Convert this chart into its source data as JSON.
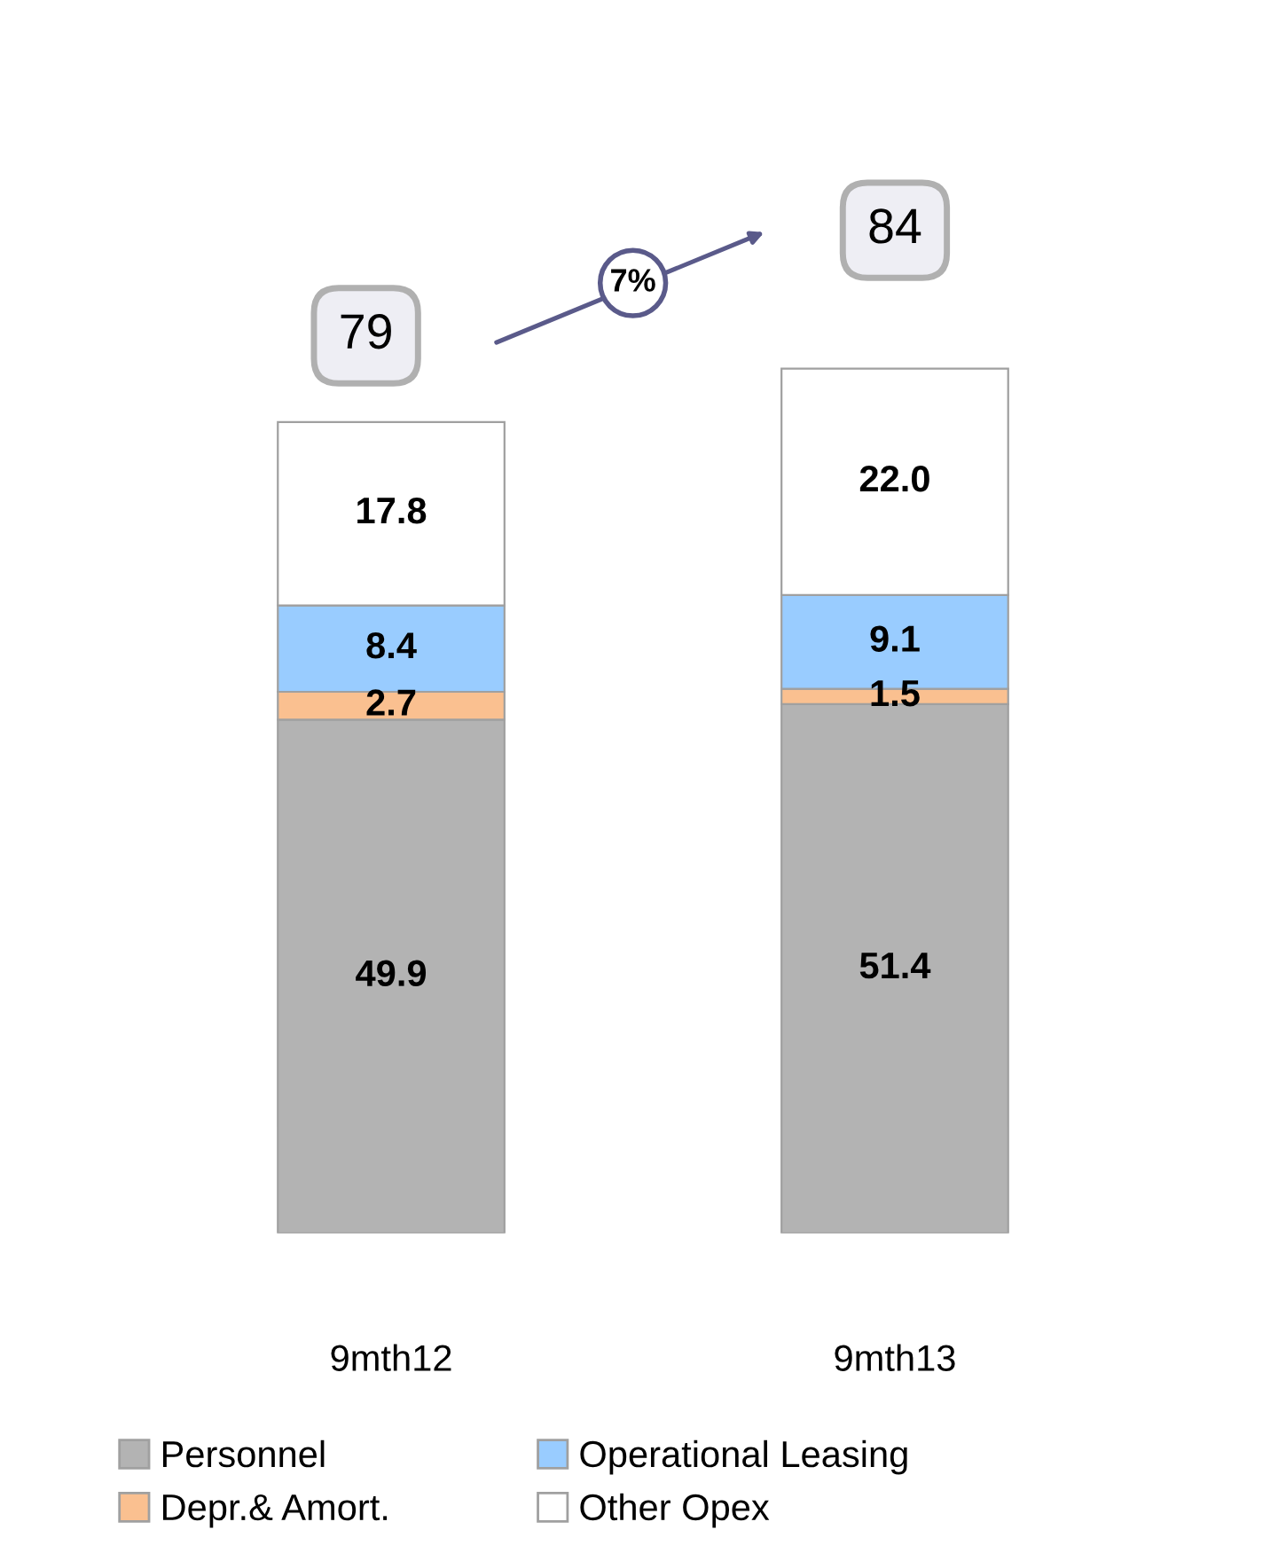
{
  "chart_data": {
    "type": "bar",
    "stacked": true,
    "categories": [
      "9mth12",
      "9mth13"
    ],
    "series": [
      {
        "name": "Personnel",
        "color": "#b3b3b3",
        "values": [
          49.9,
          51.4
        ],
        "value_labels": [
          "49.9",
          "51.4"
        ]
      },
      {
        "name": "Depr.& Amort.",
        "color": "#fac090",
        "values": [
          2.7,
          1.5
        ],
        "value_labels": [
          "2.7",
          "1.5"
        ]
      },
      {
        "name": "Operational Leasing",
        "color": "#99ccff",
        "values": [
          8.4,
          9.1
        ],
        "value_labels": [
          "8.4",
          "9.1"
        ]
      },
      {
        "name": "Other Opex",
        "color": "#ffffff",
        "values": [
          17.8,
          22.0
        ],
        "value_labels": [
          "17.8",
          "22.0"
        ]
      }
    ],
    "totals": [
      "79",
      "84"
    ],
    "annotations": [
      "7%"
    ],
    "legend": "bottom",
    "grid": false
  }
}
